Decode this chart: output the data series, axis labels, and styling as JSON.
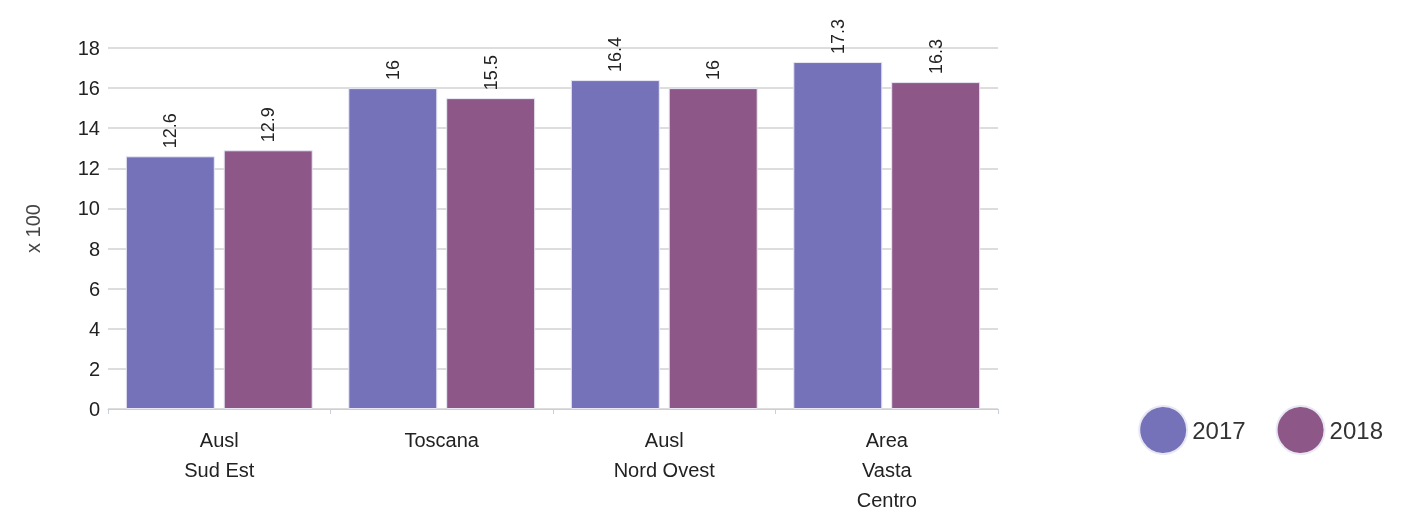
{
  "chart_data": {
    "type": "bar",
    "ylabel": "x 100",
    "categories": [
      "Ausl\nSud Est",
      "Toscana",
      "Ausl\nNord Ovest",
      "Area\nVasta\nCentro"
    ],
    "series": [
      {
        "name": "2017",
        "color": "#7672b9",
        "values": [
          12.6,
          16,
          16.4,
          17.3
        ]
      },
      {
        "name": "2018",
        "color": "#8d5787",
        "values": [
          12.9,
          15.5,
          16,
          16.3
        ]
      }
    ],
    "ylim": [
      0,
      18
    ],
    "yticks": [
      0,
      2,
      4,
      6,
      8,
      10,
      12,
      14,
      16,
      18
    ],
    "grid": "y",
    "legend": "bottom right",
    "data_labels": true
  }
}
